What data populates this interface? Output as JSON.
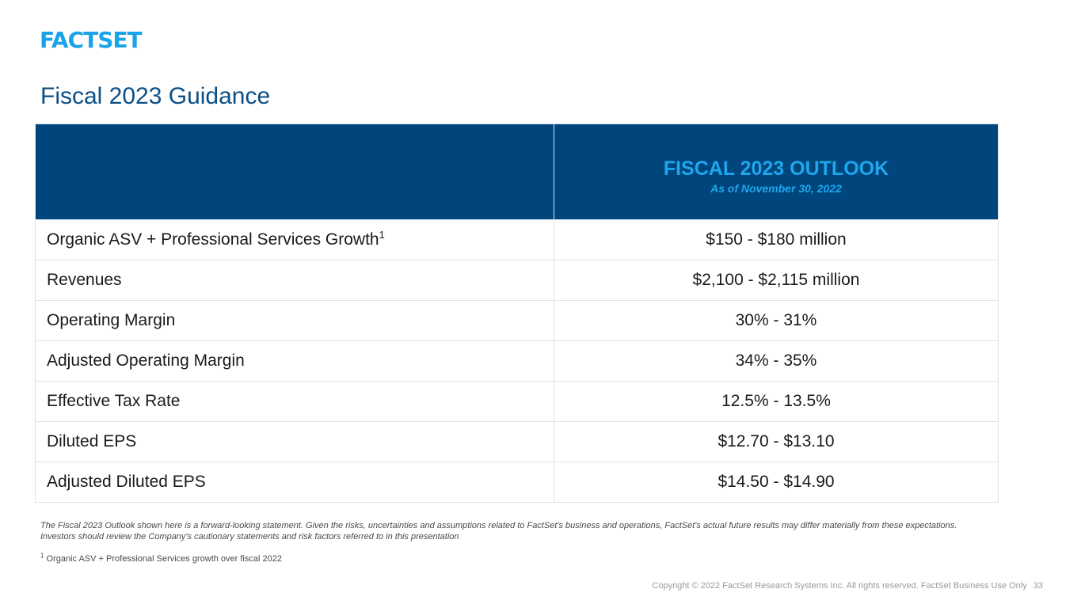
{
  "brand": {
    "logo_text": "FACTSET"
  },
  "title": "Fiscal 2023 Guidance",
  "table": {
    "header_empty": "",
    "header_title": "FISCAL 2023 OUTLOOK",
    "header_subtitle": "As of  November 30, 2022",
    "rows": [
      {
        "metric": "Organic ASV + Professional Services Growth",
        "sup": "1",
        "value": "$150 - $180 million"
      },
      {
        "metric": "Revenues",
        "sup": "",
        "value": "$2,100 - $2,115 million"
      },
      {
        "metric": "Operating Margin",
        "sup": "",
        "value": "30% - 31%"
      },
      {
        "metric": "Adjusted Operating Margin",
        "sup": "",
        "value": "34% - 35%"
      },
      {
        "metric": "Effective Tax Rate",
        "sup": "",
        "value": "12.5% - 13.5%"
      },
      {
        "metric": "Diluted EPS",
        "sup": "",
        "value": "$12.70 - $13.10"
      },
      {
        "metric": "Adjusted Diluted EPS",
        "sup": "",
        "value": "$14.50 - $14.90"
      }
    ]
  },
  "disclaimer": {
    "line1": "The Fiscal 2023 Outlook shown here is a forward-looking statement. Given the risks, uncertainties and assumptions related to FactSet's business and operations, FactSet's actual future results may differ materially from these expectations.",
    "line2": "Investors should review the Company's cautionary statements and risk factors referred to in this presentation"
  },
  "footnote": {
    "marker": "1",
    "text": " Organic ASV + Professional Services growth over fiscal 2022"
  },
  "footer": {
    "copyright": "Copyright © 2022 FactSet Research Systems Inc. All rights reserved. FactSet Business Use Only",
    "page_number": "33"
  },
  "colors": {
    "brand_blue": "#1aa3e8",
    "header_navy": "#00457b",
    "title_blue": "#0b4f86"
  }
}
